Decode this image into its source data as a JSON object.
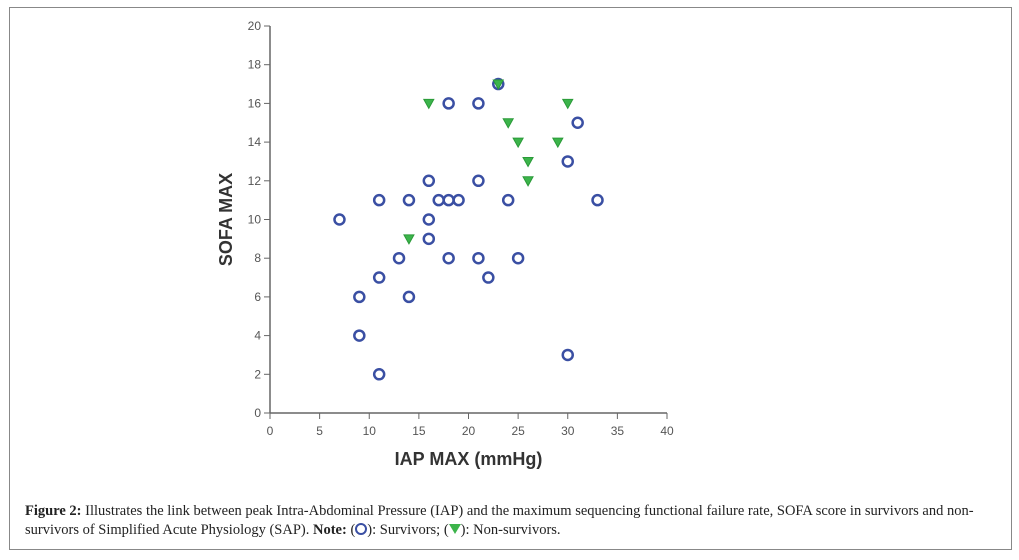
{
  "chart_data": {
    "type": "scatter",
    "xlabel": "IAP MAX (mmHg)",
    "ylabel": "SOFA MAX",
    "xlim": [
      0,
      40
    ],
    "ylim": [
      0,
      20
    ],
    "xticks": [
      "0",
      "5",
      "10",
      "15",
      "20",
      "25",
      "30",
      "35",
      "40"
    ],
    "yticks": [
      "0",
      "2",
      "4",
      "6",
      "8",
      "10",
      "12",
      "14",
      "16",
      "18",
      "20"
    ],
    "grid": false,
    "series": [
      {
        "name": "Survivors",
        "marker": "circle",
        "color": "#3a4fa3",
        "points": [
          [
            7,
            10
          ],
          [
            9,
            6
          ],
          [
            9,
            4
          ],
          [
            11,
            11
          ],
          [
            11,
            7
          ],
          [
            11,
            2
          ],
          [
            13,
            8
          ],
          [
            14,
            11
          ],
          [
            14,
            6
          ],
          [
            16,
            12
          ],
          [
            16,
            10
          ],
          [
            16,
            9
          ],
          [
            17,
            11
          ],
          [
            18,
            11
          ],
          [
            19,
            11
          ],
          [
            18,
            16
          ],
          [
            18,
            8
          ],
          [
            21,
            16
          ],
          [
            21,
            12
          ],
          [
            21,
            8
          ],
          [
            22,
            7
          ],
          [
            23,
            17
          ],
          [
            24,
            11
          ],
          [
            25,
            8
          ],
          [
            30,
            13
          ],
          [
            30,
            3
          ],
          [
            31,
            15
          ],
          [
            33,
            11
          ]
        ]
      },
      {
        "name": "Non-survivors",
        "marker": "triangle-down",
        "color": "#3cb44b",
        "points": [
          [
            14,
            9
          ],
          [
            16,
            16
          ],
          [
            23,
            17
          ],
          [
            24,
            15
          ],
          [
            25,
            14
          ],
          [
            26,
            13
          ],
          [
            26,
            12
          ],
          [
            29,
            14
          ],
          [
            30,
            16
          ]
        ]
      }
    ]
  },
  "caption": {
    "label": "Figure 2:",
    "text": " Illustrates the link between peak Intra-Abdominal Pressure (IAP) and the maximum sequencing functional failure rate, SOFA score in survivors and non-survivors of Simplified Acute Physiology (SAP). ",
    "note_label": "Note:",
    "open1": " (",
    "survivors": "): Survivors; (",
    "nonsurvivors": "): Non-survivors."
  }
}
